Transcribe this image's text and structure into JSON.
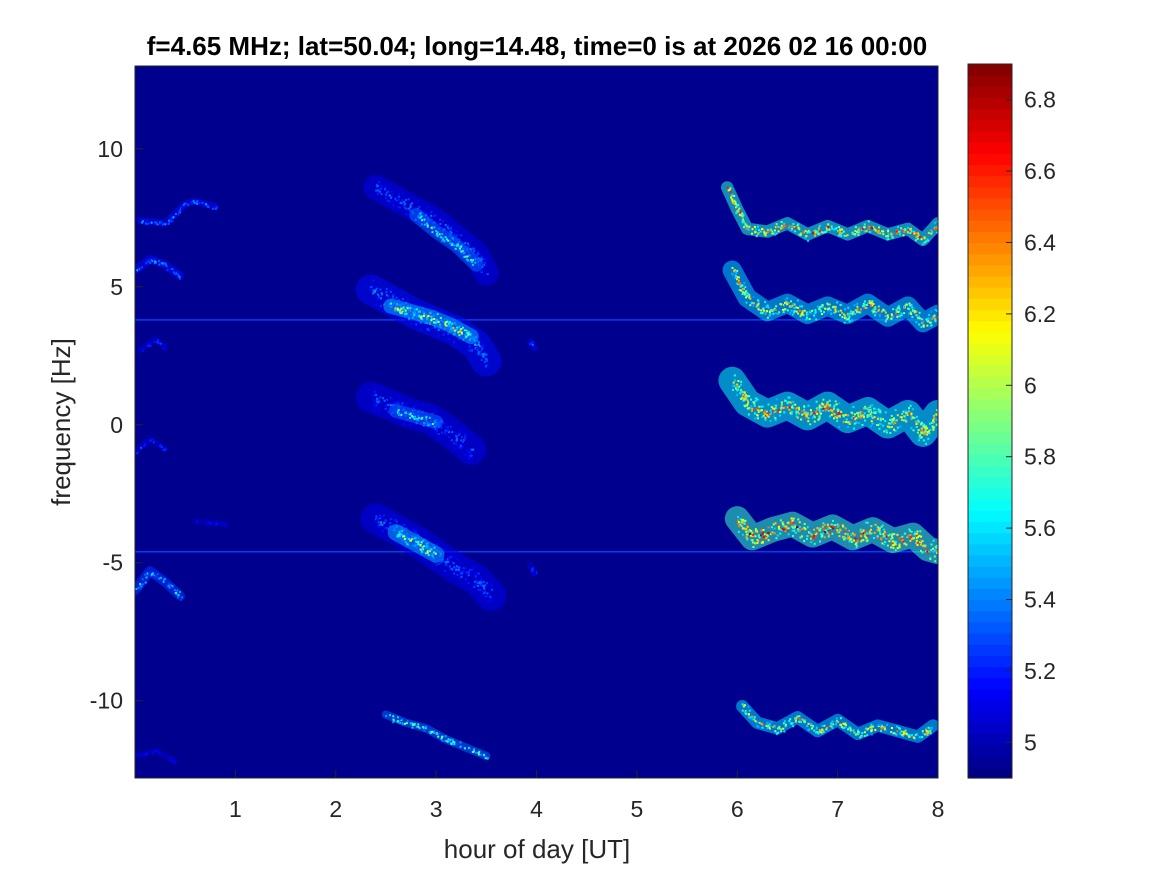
{
  "chart_data": [
    {
      "type": "heatmap",
      "title": "f=4.65 MHz;  lat=50.04; long=14.48, time=0 is at 2026 02 16 00:00",
      "xlabel": "hour of day [UT]",
      "ylabel": "frequency [Hz]",
      "xlim": [
        0,
        8
      ],
      "ylim": [
        -12.8,
        13
      ],
      "xticks": [
        1,
        2,
        3,
        4,
        5,
        6,
        7,
        8
      ],
      "xtick_labels": [
        "1",
        "2",
        "3",
        "4",
        "5",
        "6",
        "7",
        "8"
      ],
      "yticks": [
        10,
        5,
        0,
        -5,
        -10
      ],
      "ytick_labels": [
        "10",
        "5",
        "0",
        "-5",
        "-10"
      ],
      "colormap": "jet",
      "background_color": "#00008f",
      "grid": false,
      "colorbar": {
        "range": [
          4.9,
          6.9
        ],
        "ticks": [
          6.8,
          6.6,
          6.4,
          6.2,
          6,
          5.8,
          5.6,
          5.4,
          5.2,
          5
        ],
        "tick_labels": [
          "6.8",
          "6.6",
          "6.4",
          "6.2",
          "6",
          "5.8",
          "5.6",
          "5.4",
          "5.2",
          "5"
        ]
      },
      "features": [
        {
          "kind": "horizontal-line",
          "y": 3.8,
          "value": 5.3
        },
        {
          "kind": "horizontal-line",
          "y": -4.6,
          "value": 5.3
        },
        {
          "kind": "trace",
          "x": [
            0.05,
            0.3,
            0.5,
            0.6,
            0.8
          ],
          "y": [
            7.4,
            7.3,
            8.0,
            8.1,
            7.9
          ],
          "width": 0.25,
          "value": 5.5
        },
        {
          "kind": "trace",
          "x": [
            0.0,
            0.15,
            0.3,
            0.45
          ],
          "y": [
            5.6,
            6.0,
            5.8,
            5.4
          ],
          "width": 0.3,
          "value": 5.5
        },
        {
          "kind": "trace",
          "x": [
            0.05,
            0.2,
            0.3
          ],
          "y": [
            2.7,
            3.1,
            2.8
          ],
          "width": 0.2,
          "value": 5.3
        },
        {
          "kind": "trace",
          "x": [
            0.0,
            0.15,
            0.3
          ],
          "y": [
            -1.0,
            -0.5,
            -0.9
          ],
          "width": 0.2,
          "value": 5.3
        },
        {
          "kind": "trace",
          "x": [
            0.0,
            0.15,
            0.3,
            0.45
          ],
          "y": [
            -6.0,
            -5.3,
            -5.7,
            -6.2
          ],
          "width": 0.35,
          "value": 5.7
        },
        {
          "kind": "trace",
          "x": [
            0.0,
            0.2,
            0.4
          ],
          "y": [
            -12.0,
            -11.8,
            -12.2
          ],
          "width": 0.2,
          "value": 5.2
        },
        {
          "kind": "trace",
          "x": [
            0.6,
            0.9
          ],
          "y": [
            -3.5,
            -3.6
          ],
          "width": 0.2,
          "value": 5.2
        },
        {
          "kind": "trace",
          "x": [
            2.4,
            2.7,
            3.0,
            3.2,
            3.4,
            3.5
          ],
          "y": [
            8.6,
            8.0,
            7.4,
            6.8,
            6.2,
            5.5
          ],
          "width": 0.9,
          "value": 5.4
        },
        {
          "kind": "trace",
          "x": [
            2.8,
            3.0,
            3.2,
            3.4
          ],
          "y": [
            7.6,
            7.0,
            6.5,
            5.8
          ],
          "width": 0.5,
          "value": 5.9
        },
        {
          "kind": "trace",
          "x": [
            2.35,
            2.6,
            2.8,
            3.0,
            3.2,
            3.4,
            3.5
          ],
          "y": [
            4.9,
            4.4,
            4.0,
            3.7,
            3.4,
            2.9,
            2.3
          ],
          "width": 1.1,
          "value": 5.5
        },
        {
          "kind": "trace",
          "x": [
            2.55,
            2.75,
            2.95,
            3.15,
            3.35
          ],
          "y": [
            4.3,
            4.1,
            3.9,
            3.6,
            3.2
          ],
          "width": 0.55,
          "value": 6.2
        },
        {
          "kind": "trace",
          "x": [
            2.35,
            2.55,
            2.75,
            2.95,
            3.15,
            3.35
          ],
          "y": [
            1.0,
            0.7,
            0.4,
            0.2,
            -0.3,
            -0.9
          ],
          "width": 1.1,
          "value": 5.4
        },
        {
          "kind": "trace",
          "x": [
            2.6,
            2.8,
            3.0
          ],
          "y": [
            0.5,
            0.3,
            0.1
          ],
          "width": 0.5,
          "value": 5.9
        },
        {
          "kind": "trace",
          "x": [
            2.4,
            2.6,
            2.8,
            3.0,
            3.2,
            3.4,
            3.55
          ],
          "y": [
            -3.4,
            -3.8,
            -4.2,
            -4.7,
            -5.2,
            -5.6,
            -6.2
          ],
          "width": 1.1,
          "value": 5.4
        },
        {
          "kind": "trace",
          "x": [
            2.6,
            2.8,
            3.0
          ],
          "y": [
            -3.9,
            -4.3,
            -4.7
          ],
          "width": 0.6,
          "value": 6.2
        },
        {
          "kind": "trace",
          "x": [
            2.5,
            2.7,
            2.9,
            3.1,
            3.3,
            3.5
          ],
          "y": [
            -10.5,
            -10.8,
            -11.0,
            -11.4,
            -11.7,
            -12.0
          ],
          "width": 0.3,
          "value": 5.9
        },
        {
          "kind": "trace",
          "x": [
            3.94,
            3.98
          ],
          "y": [
            3.0,
            2.8
          ],
          "width": 0.25,
          "value": 5.4
        },
        {
          "kind": "trace",
          "x": [
            3.94,
            3.98
          ],
          "y": [
            -5.1,
            -5.4
          ],
          "width": 0.25,
          "value": 5.3
        },
        {
          "kind": "trace",
          "x": [
            5.9,
            6.0,
            6.1,
            6.3,
            6.5,
            6.7,
            6.9,
            7.1,
            7.3,
            7.5,
            7.7,
            7.85,
            8.0
          ],
          "y": [
            8.6,
            7.8,
            7.1,
            7.0,
            7.3,
            6.9,
            7.2,
            6.9,
            7.2,
            6.9,
            7.1,
            6.7,
            7.3
          ],
          "width": 0.45,
          "value": 6.7
        },
        {
          "kind": "trace",
          "x": [
            5.95,
            6.1,
            6.3,
            6.5,
            6.7,
            6.9,
            7.1,
            7.3,
            7.5,
            7.7,
            7.85,
            8.0
          ],
          "y": [
            5.6,
            4.6,
            4.1,
            4.4,
            4.0,
            4.3,
            4.0,
            4.4,
            3.9,
            4.3,
            3.7,
            4.0
          ],
          "width": 0.7,
          "value": 6.4
        },
        {
          "kind": "trace",
          "x": [
            5.95,
            6.1,
            6.3,
            6.5,
            6.7,
            6.9,
            7.1,
            7.3,
            7.5,
            7.7,
            7.85,
            8.0
          ],
          "y": [
            1.6,
            0.8,
            0.4,
            0.7,
            0.3,
            0.7,
            0.2,
            0.5,
            0.0,
            0.4,
            -0.3,
            0.4
          ],
          "width": 1.0,
          "value": 6.6
        },
        {
          "kind": "trace",
          "x": [
            6.0,
            6.15,
            6.35,
            6.55,
            6.75,
            6.95,
            7.15,
            7.35,
            7.55,
            7.75,
            7.9,
            8.0
          ],
          "y": [
            -3.4,
            -4.1,
            -3.8,
            -3.6,
            -4.0,
            -3.7,
            -4.1,
            -3.8,
            -4.2,
            -4.0,
            -4.5,
            -4.6
          ],
          "width": 0.9,
          "value": 6.8
        },
        {
          "kind": "trace",
          "x": [
            6.05,
            6.2,
            6.4,
            6.6,
            6.8,
            7.0,
            7.2,
            7.4,
            7.6,
            7.8,
            7.95
          ],
          "y": [
            -10.2,
            -10.8,
            -11.0,
            -10.6,
            -11.1,
            -10.7,
            -11.2,
            -10.9,
            -11.1,
            -11.3,
            -10.9
          ],
          "width": 0.45,
          "value": 6.4
        }
      ]
    }
  ]
}
